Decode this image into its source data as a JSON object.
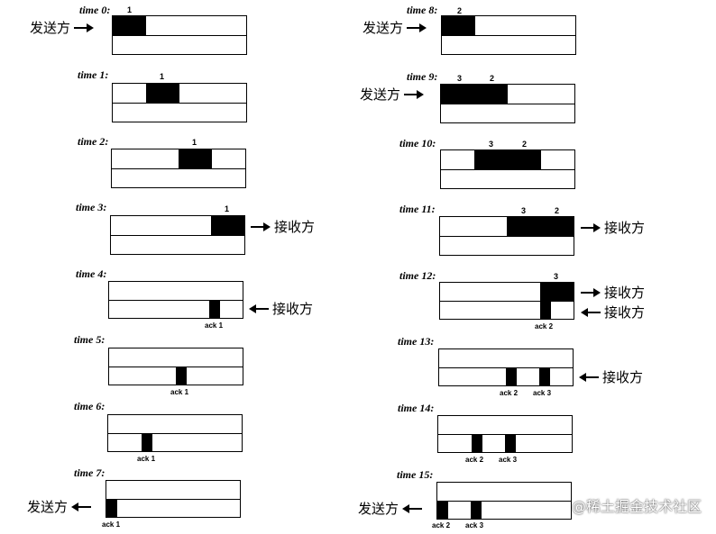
{
  "labels": {
    "sender": "发送方",
    "receiver": "接收方",
    "watermark": "@稀土掘金技术社区"
  },
  "times": [
    {
      "id": "t0",
      "title": "time 0:",
      "packets": [
        "1"
      ],
      "acks": []
    },
    {
      "id": "t1",
      "title": "time 1:",
      "packets": [
        "1"
      ],
      "acks": []
    },
    {
      "id": "t2",
      "title": "time 2:",
      "packets": [
        "1"
      ],
      "acks": []
    },
    {
      "id": "t3",
      "title": "time 3:",
      "packets": [
        "1"
      ],
      "acks": []
    },
    {
      "id": "t4",
      "title": "time 4:",
      "packets": [],
      "acks": [
        "ack 1"
      ]
    },
    {
      "id": "t5",
      "title": "time 5:",
      "packets": [],
      "acks": [
        "ack 1"
      ]
    },
    {
      "id": "t6",
      "title": "time 6:",
      "packets": [],
      "acks": [
        "ack 1"
      ]
    },
    {
      "id": "t7",
      "title": "time 7:",
      "packets": [],
      "acks": [
        "ack 1"
      ]
    },
    {
      "id": "t8",
      "title": "time 8:",
      "packets": [
        "2"
      ],
      "acks": []
    },
    {
      "id": "t9",
      "title": "time 9:",
      "packets": [
        "3",
        "2"
      ],
      "acks": []
    },
    {
      "id": "t10",
      "title": "time 10:",
      "packets": [
        "3",
        "2"
      ],
      "acks": []
    },
    {
      "id": "t11",
      "title": "time 11:",
      "packets": [
        "3",
        "2"
      ],
      "acks": []
    },
    {
      "id": "t12",
      "title": "time 12:",
      "packets": [
        "3"
      ],
      "acks": [
        "ack 2"
      ]
    },
    {
      "id": "t13",
      "title": "time 13:",
      "packets": [],
      "acks": [
        "ack 2",
        "ack 3"
      ]
    },
    {
      "id": "t14",
      "title": "time 14:",
      "packets": [],
      "acks": [
        "ack 2",
        "ack 3"
      ]
    },
    {
      "id": "t15",
      "title": "time 15:",
      "packets": [],
      "acks": [
        "ack 2",
        "ack 3"
      ]
    }
  ]
}
